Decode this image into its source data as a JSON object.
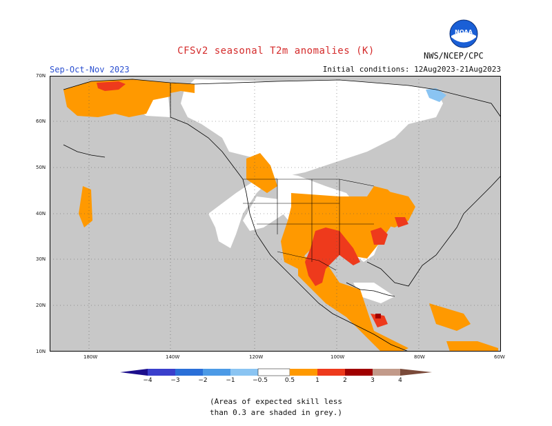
{
  "title": "CFSv2 seasonal T2m anomalies (K)",
  "season": "Sep-Oct-Nov 2023",
  "initial_conditions": "Initial conditions: 12Aug2023-21Aug2023",
  "agency": "NWS/NCEP/CPC",
  "logo": {
    "icon": "noaa-logo-icon",
    "text": "NOAA"
  },
  "latitude_labels": [
    "70N",
    "60N",
    "50N",
    "40N",
    "30N",
    "20N",
    "10N"
  ],
  "longitude_labels": [
    "180W",
    "140W",
    "120W",
    "100W",
    "80W",
    "60W"
  ],
  "colorbar": {
    "labels": [
      "−4",
      "−3",
      "−2",
      "−1",
      "−0.5",
      "0.5",
      "1",
      "2",
      "3",
      "4"
    ],
    "colors": [
      "#1c0e8c",
      "#3a3fcc",
      "#2a6fd8",
      "#4c9ae6",
      "#8ac4f2",
      "#ffffff",
      "#ff9900",
      "#ee3a1c",
      "#a00000",
      "#c29a8a",
      "#7a4a3a"
    ]
  },
  "note_line1": "(Areas of expected skill less",
  "note_line2": "than 0.3 are shaded in grey.)",
  "colors": {
    "title": "#d42a2a",
    "season": "#2a4fd0",
    "grey_mask": "#c8c8c8"
  }
}
